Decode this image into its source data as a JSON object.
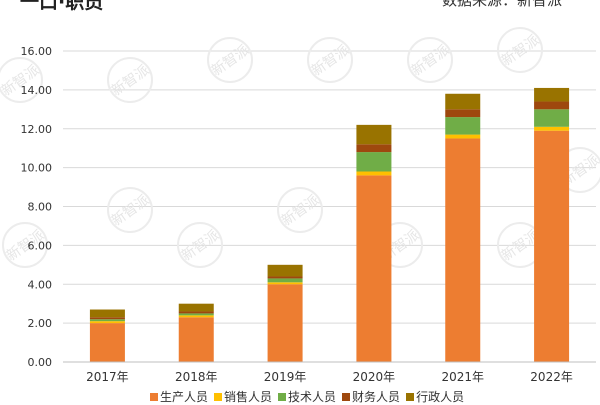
{
  "header": {
    "title": "一口·职员",
    "source": "数据来源：新智派"
  },
  "watermark": {
    "text": "新智派"
  },
  "chart_data": {
    "type": "bar",
    "stacked": true,
    "categories": [
      "2017年",
      "2018年",
      "2019年",
      "2020年",
      "2021年",
      "2022年"
    ],
    "ylim": [
      0,
      16
    ],
    "yticks": [
      "0.00",
      "2.00",
      "4.00",
      "6.00",
      "8.00",
      "10.00",
      "12.00",
      "14.00",
      "16.00"
    ],
    "grid": true,
    "legend_position": "bottom",
    "series": [
      {
        "name": "生产人员",
        "color": "#ED7D31",
        "values": [
          2.0,
          2.3,
          4.0,
          9.6,
          11.5,
          11.9
        ]
      },
      {
        "name": "销售人员",
        "color": "#FFC000",
        "values": [
          0.1,
          0.1,
          0.1,
          0.2,
          0.2,
          0.2
        ]
      },
      {
        "name": "技术人员",
        "color": "#70AD47",
        "values": [
          0.1,
          0.1,
          0.2,
          1.0,
          0.9,
          0.9
        ]
      },
      {
        "name": "财务人员",
        "color": "#9E480E",
        "values": [
          0.1,
          0.1,
          0.1,
          0.4,
          0.4,
          0.4
        ]
      },
      {
        "name": "行政人员",
        "color": "#997300",
        "values": [
          0.4,
          0.4,
          0.6,
          1.0,
          0.8,
          0.7
        ]
      }
    ]
  }
}
